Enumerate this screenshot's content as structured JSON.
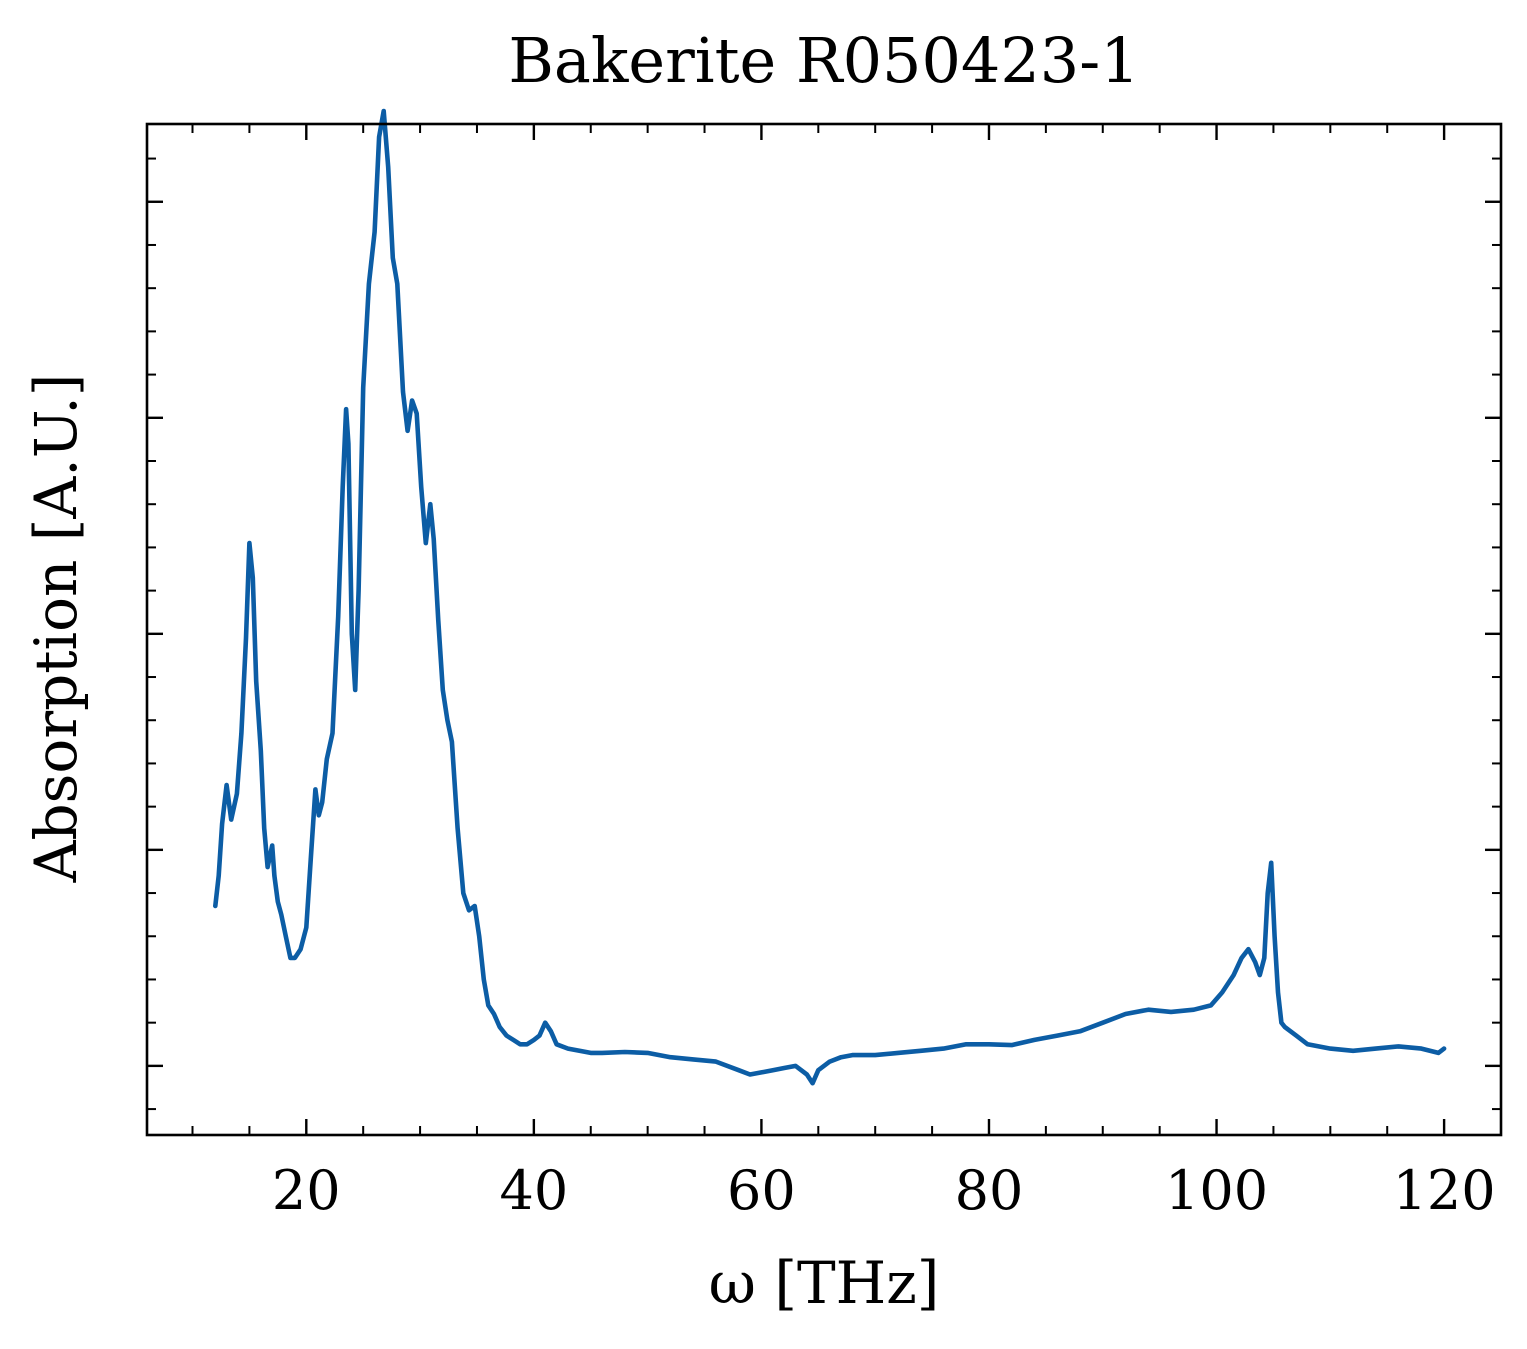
{
  "chart_data": {
    "type": "line",
    "title": "Bakerite R050423-1",
    "xlabel": "ω [THz]",
    "ylabel": "Absorption [A.U.]",
    "xlim": [
      6,
      125
    ],
    "ylim": [
      -0.16,
      2.18
    ],
    "x_ticks": [
      20,
      40,
      60,
      80,
      100,
      120
    ],
    "x_tick_labels": [
      "20",
      "40",
      "60",
      "80",
      "100",
      "120"
    ],
    "x_minor_step": 5,
    "y_ticks": [
      0,
      0.5,
      1.0,
      1.5,
      2.0
    ],
    "y_tick_labels": [],
    "y_minor_step": 0.1,
    "grid": false,
    "ticks_direction": "in",
    "line_color": "#0C5DA5",
    "series": [
      {
        "x": [
          12.0,
          12.3,
          12.6,
          13.0,
          13.4,
          13.9,
          14.3,
          14.7,
          15.0,
          15.3,
          15.6,
          16.0,
          16.3,
          16.6,
          17.0,
          17.2,
          17.5,
          17.8,
          18.2,
          18.6,
          19.0,
          19.5,
          20.0,
          20.4,
          20.8,
          21.1,
          21.4,
          21.8,
          22.3,
          22.8,
          23.2,
          23.5,
          23.7,
          24.0,
          24.3,
          24.6,
          25.0,
          25.5,
          26.0,
          26.4,
          26.8,
          27.2,
          27.6,
          28.0,
          28.5,
          28.9,
          29.3,
          29.7,
          30.1,
          30.5,
          30.9,
          31.2,
          31.6,
          32.0,
          32.4,
          32.8,
          33.3,
          33.8,
          34.3,
          34.8,
          35.2,
          35.6,
          36.0,
          36.5,
          37.0,
          37.6,
          38.2,
          38.8,
          39.4,
          40.0,
          40.5,
          41.0,
          41.5,
          42.0,
          43.0,
          44.0,
          45.0,
          46.0,
          48.0,
          50.0,
          52.0,
          54.0,
          56.0,
          58.0,
          59.0,
          60.0,
          61.0,
          62.0,
          63.0,
          64.0,
          64.5,
          65.0,
          66.0,
          67.0,
          68.0,
          70.0,
          72.0,
          74.0,
          76.0,
          78.0,
          80.0,
          82.0,
          84.0,
          86.0,
          88.0,
          90.0,
          92.0,
          94.0,
          96.0,
          98.0,
          99.5,
          100.5,
          101.5,
          102.2,
          102.8,
          103.4,
          103.8,
          104.2,
          104.5,
          104.8,
          105.1,
          105.4,
          105.7,
          106.0,
          107.0,
          108.0,
          110.0,
          112.0,
          114.0,
          116.0,
          118.0,
          119.5,
          120.0
        ],
        "y": [
          0.37,
          0.44,
          0.56,
          0.65,
          0.57,
          0.63,
          0.77,
          0.99,
          1.21,
          1.13,
          0.89,
          0.73,
          0.55,
          0.46,
          0.51,
          0.44,
          0.38,
          0.35,
          0.3,
          0.25,
          0.25,
          0.27,
          0.32,
          0.48,
          0.64,
          0.58,
          0.61,
          0.71,
          0.77,
          1.04,
          1.34,
          1.52,
          1.44,
          1.0,
          0.87,
          1.1,
          1.57,
          1.81,
          1.93,
          2.15,
          2.21,
          2.08,
          1.87,
          1.81,
          1.56,
          1.47,
          1.54,
          1.51,
          1.34,
          1.21,
          1.3,
          1.22,
          1.03,
          0.87,
          0.8,
          0.75,
          0.55,
          0.4,
          0.36,
          0.37,
          0.3,
          0.2,
          0.14,
          0.12,
          0.09,
          0.07,
          0.06,
          0.05,
          0.05,
          0.06,
          0.07,
          0.1,
          0.08,
          0.05,
          0.04,
          0.035,
          0.03,
          0.03,
          0.032,
          0.03,
          0.02,
          0.015,
          0.01,
          -0.01,
          -0.02,
          -0.015,
          -0.01,
          -0.005,
          0.0,
          -0.02,
          -0.04,
          -0.01,
          0.01,
          0.02,
          0.025,
          0.025,
          0.03,
          0.035,
          0.04,
          0.05,
          0.05,
          0.048,
          0.06,
          0.07,
          0.08,
          0.1,
          0.12,
          0.13,
          0.125,
          0.13,
          0.14,
          0.17,
          0.21,
          0.25,
          0.27,
          0.24,
          0.21,
          0.25,
          0.4,
          0.47,
          0.3,
          0.17,
          0.1,
          0.09,
          0.07,
          0.05,
          0.04,
          0.035,
          0.04,
          0.045,
          0.04,
          0.03,
          0.04
        ]
      }
    ]
  }
}
